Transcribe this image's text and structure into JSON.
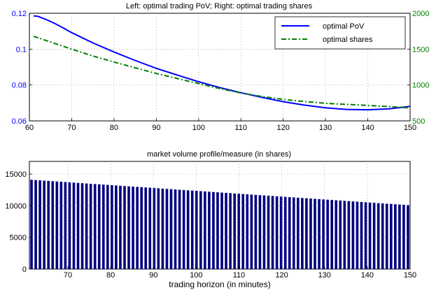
{
  "chart_data": [
    {
      "type": "line",
      "title": "Left: optimal trading PoV;  Right: optimal trading shares",
      "xlabel": "",
      "xlim": [
        60,
        150
      ],
      "x_ticks": [
        60,
        70,
        80,
        90,
        100,
        110,
        120,
        130,
        140,
        150
      ],
      "ylim_left": [
        0.06,
        0.12
      ],
      "y_ticks_left": [
        "0.06",
        "0.08",
        "0.1",
        "0.12"
      ],
      "ylim_right": [
        500,
        2000
      ],
      "y_ticks_right": [
        "500",
        "1000",
        "1500",
        "2000"
      ],
      "right_axis_color": "#008000",
      "left_axis_color": "#0000ff",
      "grid": "dotted",
      "legend_position": "top-right",
      "series": [
        {
          "name": "optimal PoV",
          "axis": "left",
          "color": "#0000ff",
          "style": "solid",
          "x": [
            61,
            62,
            64,
            66,
            68,
            70,
            75,
            80,
            85,
            90,
            95,
            100,
            105,
            110,
            115,
            120,
            125,
            130,
            135,
            140,
            145,
            150
          ],
          "y": [
            0.1185,
            0.1183,
            0.1165,
            0.1143,
            0.1118,
            0.1092,
            0.1035,
            0.0984,
            0.0937,
            0.0893,
            0.0855,
            0.0818,
            0.0786,
            0.0757,
            0.0731,
            0.0707,
            0.0688,
            0.0673,
            0.0664,
            0.0662,
            0.0667,
            0.0681
          ]
        },
        {
          "name": "optimal shares",
          "axis": "right",
          "color": "#008000",
          "style": "dashdot",
          "x": [
            61,
            65,
            70,
            75,
            80,
            85,
            90,
            95,
            100,
            105,
            110,
            115,
            120,
            125,
            130,
            135,
            140,
            145,
            150
          ],
          "y": [
            1680,
            1600,
            1500,
            1405,
            1320,
            1240,
            1160,
            1090,
            1020,
            950,
            890,
            840,
            800,
            770,
            745,
            730,
            715,
            700,
            680
          ]
        }
      ]
    },
    {
      "type": "bar",
      "title": "market volume profile/measure (in shares)",
      "xlabel": "trading horizon (in minutes)",
      "xlim": [
        61,
        150
      ],
      "x_ticks": [
        70,
        80,
        90,
        100,
        110,
        120,
        130,
        140,
        150
      ],
      "ylim": [
        0,
        17000
      ],
      "y_ticks": [
        0,
        5000,
        10000,
        15000
      ],
      "grid": "dotted",
      "bar_color": "#000080",
      "x_start": 61,
      "x_end": 150,
      "values_start": 14100,
      "values_end": 10100,
      "values_note_x_step": 1
    }
  ]
}
